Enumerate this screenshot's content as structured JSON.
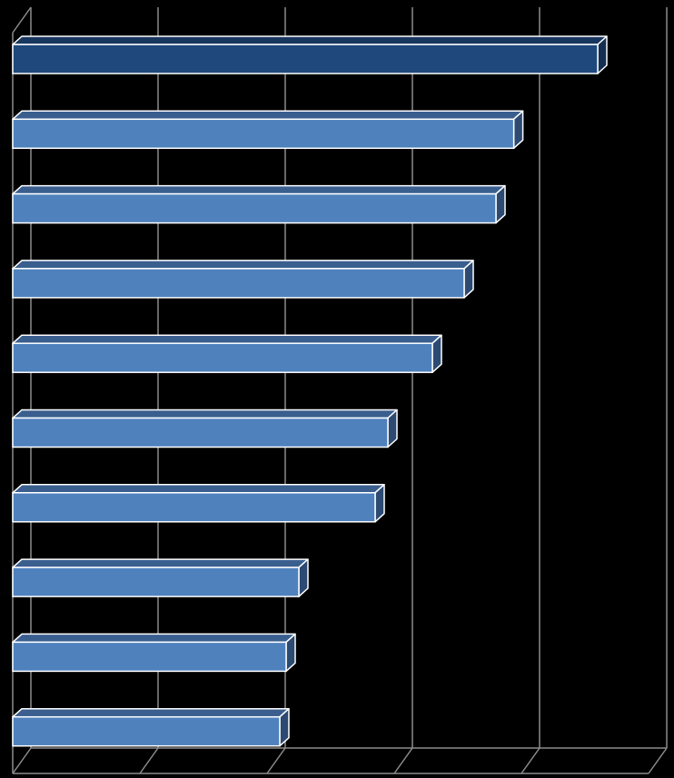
{
  "chart_data": {
    "type": "bar",
    "orientation": "horizontal",
    "three_d": true,
    "title": "",
    "xlabel": "",
    "ylabel": "",
    "grid": true,
    "legend": "none",
    "xlim": [
      0,
      5
    ],
    "categories": [
      "",
      "",
      "",
      "",
      "",
      "",
      "",
      "",
      "",
      ""
    ],
    "values": [
      4.6,
      3.94,
      3.8,
      3.55,
      3.3,
      2.95,
      2.85,
      2.25,
      2.15,
      2.1
    ],
    "colors": {
      "background": "#000000",
      "bar_highlight": "#1F497D",
      "bar_default": "#4F81BD",
      "bar_top": "#3A5F8F",
      "bar_side": "#2C4A72",
      "bar_outline": "#FFFFFF",
      "grid": "#8C8C8C"
    },
    "highlight_index": 0
  }
}
